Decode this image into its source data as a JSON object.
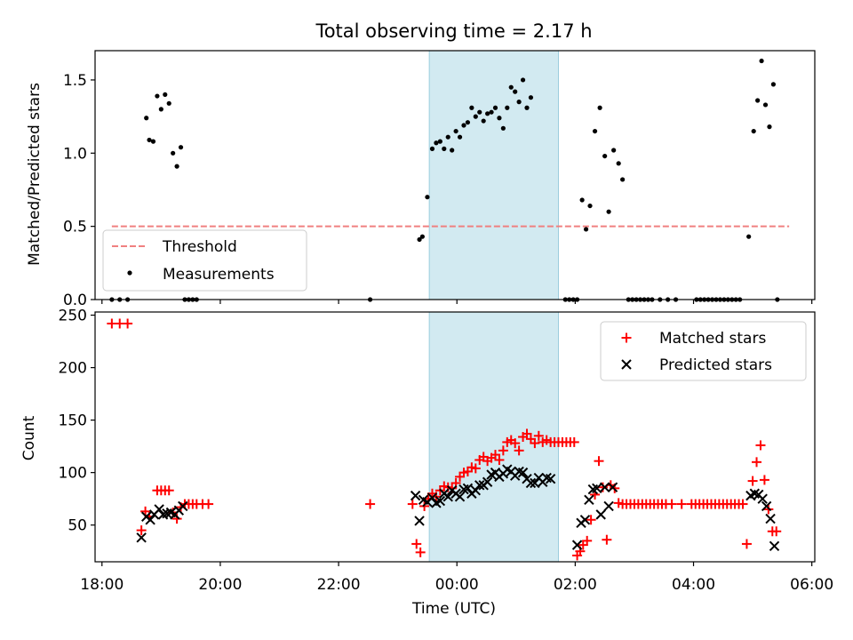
{
  "title": "Total observing time = 2.17 h",
  "xlabel": "Time (UTC)",
  "x_ticks": [
    "18:00",
    "20:00",
    "22:00",
    "00:00",
    "02:00",
    "04:00",
    "06:00"
  ],
  "shaded_interval": {
    "start": "23:32",
    "end": "01:43",
    "color": "#add8e6"
  },
  "chart_data": [
    {
      "type": "scatter",
      "ylabel": "Matched/Predicted stars",
      "ylim": [
        0,
        1.7
      ],
      "xlim": [
        "17:53",
        "06:03"
      ],
      "y_ticks": [
        "0.0",
        "0.5",
        "1.0",
        "1.5"
      ],
      "legend_position": "lower-left",
      "threshold": {
        "name": "Threshold",
        "value": 0.5,
        "x_range": [
          "18:10",
          "05:37"
        ],
        "color": "#f08080",
        "style": "dashed"
      },
      "series": [
        {
          "name": "Measurements",
          "color": "#000000",
          "marker": "dot",
          "points": [
            [
              "18:10",
              0
            ],
            [
              "18:18",
              0
            ],
            [
              "18:26",
              0
            ],
            [
              "18:45",
              1.24
            ],
            [
              "18:48",
              1.09
            ],
            [
              "18:52",
              1.08
            ],
            [
              "18:56",
              1.39
            ],
            [
              "19:00",
              1.3
            ],
            [
              "19:04",
              1.4
            ],
            [
              "19:08",
              1.34
            ],
            [
              "19:12",
              1.0
            ],
            [
              "19:16",
              0.91
            ],
            [
              "19:20",
              1.04
            ],
            [
              "19:24",
              0
            ],
            [
              "19:28",
              0
            ],
            [
              "19:32",
              0
            ],
            [
              "19:36",
              0
            ],
            [
              "22:32",
              0
            ],
            [
              "23:22",
              0.41
            ],
            [
              "23:25",
              0.43
            ],
            [
              "23:30",
              0.7
            ],
            [
              "23:35",
              1.03
            ],
            [
              "23:39",
              1.07
            ],
            [
              "23:43",
              1.08
            ],
            [
              "23:47",
              1.03
            ],
            [
              "23:51",
              1.11
            ],
            [
              "23:55",
              1.02
            ],
            [
              "23:59",
              1.15
            ],
            [
              "00:03",
              1.11
            ],
            [
              "00:07",
              1.19
            ],
            [
              "00:11",
              1.21
            ],
            [
              "00:15",
              1.31
            ],
            [
              "00:19",
              1.25
            ],
            [
              "00:23",
              1.28
            ],
            [
              "00:27",
              1.22
            ],
            [
              "00:31",
              1.27
            ],
            [
              "00:35",
              1.28
            ],
            [
              "00:39",
              1.31
            ],
            [
              "00:43",
              1.24
            ],
            [
              "00:47",
              1.17
            ],
            [
              "00:51",
              1.31
            ],
            [
              "00:55",
              1.45
            ],
            [
              "00:59",
              1.42
            ],
            [
              "01:03",
              1.35
            ],
            [
              "01:07",
              1.5
            ],
            [
              "01:11",
              1.31
            ],
            [
              "01:15",
              1.38
            ],
            [
              "01:50",
              0
            ],
            [
              "01:54",
              0
            ],
            [
              "01:58",
              0
            ],
            [
              "02:02",
              0
            ],
            [
              "02:07",
              0.68
            ],
            [
              "02:11",
              0.48
            ],
            [
              "02:15",
              0.64
            ],
            [
              "02:20",
              1.15
            ],
            [
              "02:25",
              1.31
            ],
            [
              "02:30",
              0.98
            ],
            [
              "02:34",
              0.6
            ],
            [
              "02:39",
              1.02
            ],
            [
              "02:44",
              0.93
            ],
            [
              "02:48",
              0.82
            ],
            [
              "02:54",
              0
            ],
            [
              "02:58",
              0
            ],
            [
              "03:02",
              0
            ],
            [
              "03:06",
              0
            ],
            [
              "03:10",
              0
            ],
            [
              "03:14",
              0
            ],
            [
              "03:18",
              0
            ],
            [
              "03:26",
              0
            ],
            [
              "03:34",
              0
            ],
            [
              "03:42",
              0
            ],
            [
              "04:03",
              0
            ],
            [
              "04:07",
              0
            ],
            [
              "04:11",
              0
            ],
            [
              "04:15",
              0
            ],
            [
              "04:19",
              0
            ],
            [
              "04:23",
              0
            ],
            [
              "04:27",
              0
            ],
            [
              "04:31",
              0
            ],
            [
              "04:35",
              0
            ],
            [
              "04:39",
              0
            ],
            [
              "04:43",
              0
            ],
            [
              "04:47",
              0
            ],
            [
              "04:56",
              0.43
            ],
            [
              "05:01",
              1.15
            ],
            [
              "05:05",
              1.36
            ],
            [
              "05:09",
              1.63
            ],
            [
              "05:13",
              1.33
            ],
            [
              "05:17",
              1.18
            ],
            [
              "05:21",
              1.47
            ],
            [
              "05:25",
              0
            ]
          ]
        }
      ]
    },
    {
      "type": "scatter",
      "ylabel": "Count",
      "ylim": [
        15,
        253
      ],
      "xlim": [
        "17:53",
        "06:03"
      ],
      "y_ticks": [
        "50",
        "100",
        "150",
        "200",
        "250"
      ],
      "legend_position": "top-right",
      "series": [
        {
          "name": "Matched stars",
          "color": "#ff0000",
          "marker": "plus",
          "points": [
            [
              "18:10",
              242
            ],
            [
              "18:18",
              242
            ],
            [
              "18:26",
              242
            ],
            [
              "18:40",
              45
            ],
            [
              "18:44",
              63
            ],
            [
              "18:48",
              58
            ],
            [
              "18:56",
              83
            ],
            [
              "19:00",
              83
            ],
            [
              "19:04",
              83
            ],
            [
              "19:08",
              83
            ],
            [
              "19:12",
              62
            ],
            [
              "19:16",
              56
            ],
            [
              "19:20",
              67
            ],
            [
              "19:24",
              70
            ],
            [
              "19:28",
              70
            ],
            [
              "19:32",
              70
            ],
            [
              "19:36",
              70
            ],
            [
              "19:42",
              70
            ],
            [
              "19:48",
              70
            ],
            [
              "22:32",
              70
            ],
            [
              "23:15",
              70
            ],
            [
              "23:19",
              32
            ],
            [
              "23:23",
              24
            ],
            [
              "23:27",
              68
            ],
            [
              "23:31",
              75
            ],
            [
              "23:35",
              80
            ],
            [
              "23:39",
              77
            ],
            [
              "23:43",
              83
            ],
            [
              "23:47",
              87
            ],
            [
              "23:51",
              86
            ],
            [
              "23:55",
              85
            ],
            [
              "23:59",
              90
            ],
            [
              "00:03",
              96
            ],
            [
              "00:07",
              100
            ],
            [
              "00:11",
              101
            ],
            [
              "00:15",
              105
            ],
            [
              "00:19",
              104
            ],
            [
              "00:23",
              112
            ],
            [
              "00:27",
              115
            ],
            [
              "00:31",
              111
            ],
            [
              "00:35",
              114
            ],
            [
              "00:39",
              117
            ],
            [
              "00:43",
              112
            ],
            [
              "00:47",
              121
            ],
            [
              "00:51",
              129
            ],
            [
              "00:55",
              131
            ],
            [
              "00:59",
              128
            ],
            [
              "01:03",
              121
            ],
            [
              "01:07",
              134
            ],
            [
              "01:11",
              137
            ],
            [
              "01:15",
              132
            ],
            [
              "01:19",
              128
            ],
            [
              "01:23",
              135
            ],
            [
              "01:27",
              129
            ],
            [
              "01:31",
              131
            ],
            [
              "01:35",
              129
            ],
            [
              "01:39",
              129
            ],
            [
              "01:43",
              129
            ],
            [
              "01:47",
              129
            ],
            [
              "01:51",
              129
            ],
            [
              "01:55",
              129
            ],
            [
              "01:59",
              129
            ],
            [
              "02:02",
              21
            ],
            [
              "02:05",
              25
            ],
            [
              "02:08",
              31
            ],
            [
              "02:12",
              35
            ],
            [
              "02:16",
              55
            ],
            [
              "02:20",
              79
            ],
            [
              "02:24",
              111
            ],
            [
              "02:28",
              86
            ],
            [
              "02:32",
              36
            ],
            [
              "02:36",
              88
            ],
            [
              "02:40",
              85
            ],
            [
              "02:44",
              71
            ],
            [
              "02:48",
              70
            ],
            [
              "02:52",
              70
            ],
            [
              "02:56",
              70
            ],
            [
              "03:00",
              70
            ],
            [
              "03:04",
              70
            ],
            [
              "03:08",
              70
            ],
            [
              "03:12",
              70
            ],
            [
              "03:16",
              70
            ],
            [
              "03:20",
              70
            ],
            [
              "03:24",
              70
            ],
            [
              "03:28",
              70
            ],
            [
              "03:32",
              70
            ],
            [
              "03:38",
              70
            ],
            [
              "03:48",
              70
            ],
            [
              "03:58",
              70
            ],
            [
              "04:02",
              70
            ],
            [
              "04:06",
              70
            ],
            [
              "04:10",
              70
            ],
            [
              "04:14",
              70
            ],
            [
              "04:18",
              70
            ],
            [
              "04:22",
              70
            ],
            [
              "04:26",
              70
            ],
            [
              "04:30",
              70
            ],
            [
              "04:34",
              70
            ],
            [
              "04:38",
              70
            ],
            [
              "04:42",
              70
            ],
            [
              "04:46",
              70
            ],
            [
              "04:50",
              70
            ],
            [
              "04:54",
              32
            ],
            [
              "05:00",
              92
            ],
            [
              "05:04",
              110
            ],
            [
              "05:08",
              126
            ],
            [
              "05:12",
              93
            ],
            [
              "05:16",
              65
            ],
            [
              "05:20",
              44
            ],
            [
              "05:24",
              44
            ]
          ]
        },
        {
          "name": "Predicted stars",
          "color": "#000000",
          "marker": "x",
          "points": [
            [
              "18:40",
              38
            ],
            [
              "18:45",
              58
            ],
            [
              "18:49",
              55
            ],
            [
              "18:53",
              60
            ],
            [
              "18:58",
              65
            ],
            [
              "19:02",
              60
            ],
            [
              "19:06",
              61
            ],
            [
              "19:10",
              62
            ],
            [
              "19:14",
              60
            ],
            [
              "19:18",
              64
            ],
            [
              "19:22",
              68
            ],
            [
              "23:18",
              78
            ],
            [
              "23:22",
              54
            ],
            [
              "23:26",
              74
            ],
            [
              "23:30",
              72
            ],
            [
              "23:35",
              76
            ],
            [
              "23:39",
              71
            ],
            [
              "23:43",
              73
            ],
            [
              "23:47",
              80
            ],
            [
              "23:51",
              77
            ],
            [
              "23:55",
              83
            ],
            [
              "23:59",
              80
            ],
            [
              "00:03",
              77
            ],
            [
              "00:07",
              84
            ],
            [
              "00:11",
              85
            ],
            [
              "00:15",
              80
            ],
            [
              "00:19",
              83
            ],
            [
              "00:23",
              88
            ],
            [
              "00:27",
              88
            ],
            [
              "00:31",
              91
            ],
            [
              "00:35",
              98
            ],
            [
              "00:39",
              100
            ],
            [
              "00:43",
              96
            ],
            [
              "00:47",
              99
            ],
            [
              "00:51",
              103
            ],
            [
              "00:55",
              101
            ],
            [
              "00:59",
              97
            ],
            [
              "01:03",
              101
            ],
            [
              "01:07",
              100
            ],
            [
              "01:11",
              94
            ],
            [
              "01:15",
              90
            ],
            [
              "01:19",
              90
            ],
            [
              "01:23",
              95
            ],
            [
              "01:27",
              91
            ],
            [
              "01:31",
              95
            ],
            [
              "01:35",
              94
            ],
            [
              "02:02",
              31
            ],
            [
              "02:06",
              52
            ],
            [
              "02:10",
              55
            ],
            [
              "02:14",
              74
            ],
            [
              "02:18",
              84
            ],
            [
              "02:22",
              85
            ],
            [
              "02:26",
              60
            ],
            [
              "02:30",
              86
            ],
            [
              "02:34",
              68
            ],
            [
              "02:38",
              86
            ],
            [
              "04:58",
              78
            ],
            [
              "05:02",
              80
            ],
            [
              "05:06",
              79
            ],
            [
              "05:10",
              75
            ],
            [
              "05:14",
              68
            ],
            [
              "05:18",
              56
            ],
            [
              "05:22",
              30
            ]
          ]
        }
      ]
    }
  ]
}
